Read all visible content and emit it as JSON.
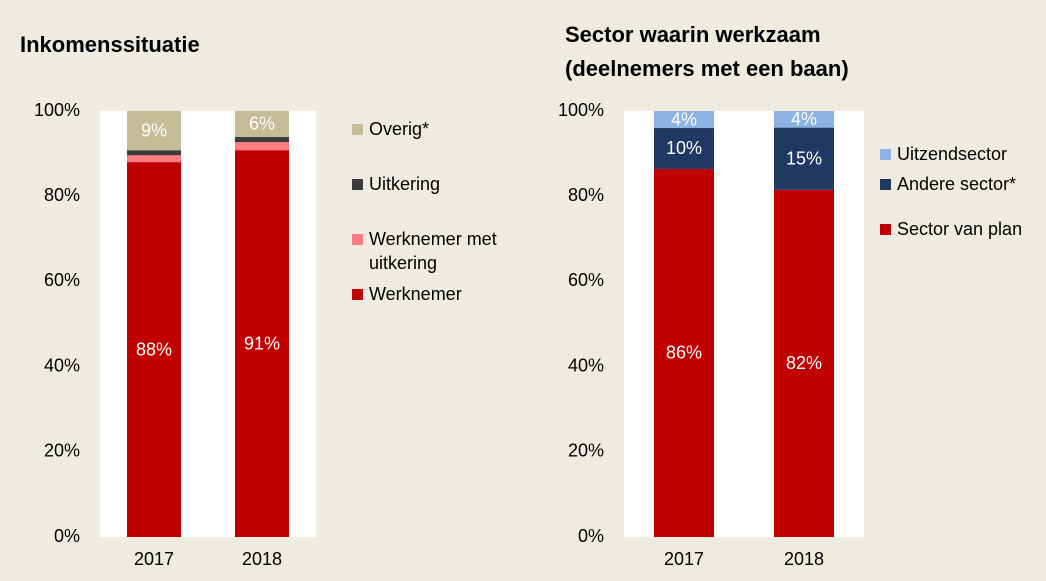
{
  "chart_data": [
    {
      "type": "stacked_bar",
      "title": "Inkomenssituatie",
      "categories": [
        "2017",
        "2018"
      ],
      "series": [
        {
          "name": "Werknemer",
          "color": "#c00000",
          "values": [
            88.0,
            90.8
          ],
          "value_labels": [
            "88%",
            "91%"
          ]
        },
        {
          "name": "Werknemer met uitkering",
          "color": "#ff7c80",
          "values": [
            1.6,
            1.9
          ],
          "value_labels": [
            null,
            null
          ]
        },
        {
          "name": "Uitkering",
          "color": "#3b3b3b",
          "values": [
            1.2,
            1.2
          ],
          "value_labels": [
            null,
            null
          ]
        },
        {
          "name": "Overig*",
          "color": "#c4bd97",
          "values": [
            9.2,
            6.1
          ],
          "value_labels": [
            "9%",
            "6%"
          ]
        }
      ],
      "ylim": [
        0,
        100
      ],
      "yticks": [
        {
          "value": 0,
          "label": "0%"
        },
        {
          "value": 20,
          "label": "20%"
        },
        {
          "value": 40,
          "label": "40%"
        },
        {
          "value": 60,
          "label": "60%"
        },
        {
          "value": 80,
          "label": "80%"
        },
        {
          "value": 100,
          "label": "100%"
        }
      ],
      "legend": "right"
    },
    {
      "type": "stacked_bar",
      "title": "Sector waarin werkzaam (deelnemers met een baan)",
      "categories": [
        "2017",
        "2018"
      ],
      "series": [
        {
          "name": "Sector van plan",
          "color": "#c00000",
          "values": [
            86.4,
            81.5
          ],
          "value_labels": [
            "86%",
            "82%"
          ]
        },
        {
          "name": "Andere sector*",
          "color": "#1f3864",
          "values": [
            9.6,
            14.6
          ],
          "value_labels": [
            "10%",
            "15%"
          ]
        },
        {
          "name": "Uitzendsector",
          "color": "#8db3e2",
          "values": [
            4.0,
            3.9
          ],
          "value_labels": [
            "4%",
            "4%"
          ]
        }
      ],
      "ylim": [
        0,
        100
      ],
      "yticks": [
        {
          "value": 0,
          "label": "0%"
        },
        {
          "value": 20,
          "label": "20%"
        },
        {
          "value": 40,
          "label": "40%"
        },
        {
          "value": 60,
          "label": "60%"
        },
        {
          "value": 80,
          "label": "80%"
        },
        {
          "value": 100,
          "label": "100%"
        }
      ],
      "legend": "right"
    }
  ]
}
